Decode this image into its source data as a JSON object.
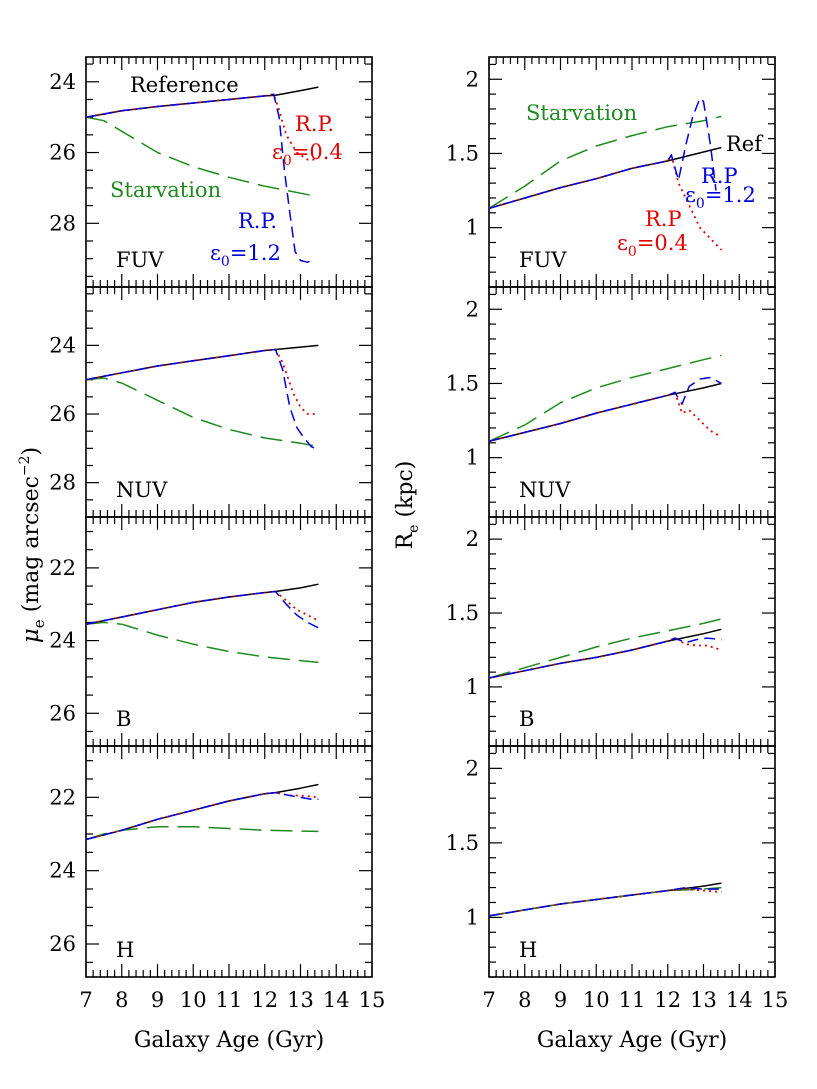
{
  "colors": {
    "ref": "#000000",
    "starvation": "#1f8a1f",
    "rp04": "#e00000",
    "rp12": "#0000dd"
  },
  "left_ylabel": {
    "main": "μ",
    "sub": "e",
    "rest": " (mag arcsec",
    "sup": "−2",
    "end": ")"
  },
  "right_ylabel": {
    "main": "R",
    "sub": "e",
    "rest": " (kpc)"
  },
  "xlabel": "Galaxy Age (Gyr)",
  "x_ticks": [
    "7",
    "8",
    "9",
    "10",
    "11",
    "12",
    "13",
    "14",
    "15"
  ],
  "annotations": {
    "reference": "Reference",
    "ref_short": "Ref",
    "starvation": "Starvation",
    "rp": "R.P.",
    "rp_nodot": "R.P",
    "eps": "ε",
    "eps_sub": "0",
    "eps_val_04": "=0.4",
    "eps_val_12": "=1.2"
  },
  "chart_data": [
    {
      "type": "line",
      "panel": "left-FUV",
      "band": "FUV",
      "xlabel": "",
      "ylabel": "μe (mag arcsec−2)",
      "xlim": [
        7,
        15
      ],
      "ylim": [
        29.8,
        23.3
      ],
      "y_ticks": [
        24,
        26,
        28
      ],
      "y_tick_labels": [
        "24",
        "26",
        "28"
      ],
      "grid": false,
      "series": [
        {
          "name": "Reference",
          "key": "ref",
          "x": [
            7,
            8,
            9,
            10,
            11,
            12,
            12.3,
            13,
            13.5
          ],
          "y": [
            25.0,
            24.82,
            24.7,
            24.6,
            24.5,
            24.4,
            24.38,
            24.25,
            24.15
          ]
        },
        {
          "name": "Starvation",
          "key": "starvation",
          "x": [
            7,
            7.5,
            8,
            9,
            10,
            11,
            12,
            13,
            13.5
          ],
          "y": [
            25.0,
            25.1,
            25.4,
            26.0,
            26.4,
            26.7,
            26.95,
            27.15,
            27.25
          ]
        },
        {
          "name": "R.P. ε0=0.4",
          "key": "rp04",
          "x": [
            7,
            8,
            9,
            10,
            11,
            12,
            12.25,
            12.4,
            12.6,
            12.9,
            13.2,
            13.5
          ],
          "y": [
            25.0,
            24.82,
            24.7,
            24.6,
            24.5,
            24.4,
            24.35,
            24.8,
            25.5,
            26.0,
            26.2,
            26.2
          ]
        },
        {
          "name": "R.P. ε0=1.2",
          "key": "rp12",
          "x": [
            7,
            8,
            9,
            10,
            11,
            12,
            12.25,
            12.4,
            12.55,
            12.7,
            12.85,
            13.0,
            13.2,
            13.4
          ],
          "y": [
            25.0,
            24.82,
            24.7,
            24.6,
            24.5,
            24.4,
            24.35,
            25.0,
            26.5,
            27.7,
            28.8,
            29.05,
            29.1,
            29.0
          ]
        }
      ]
    },
    {
      "type": "line",
      "panel": "left-NUV",
      "band": "NUV",
      "xlabel": "",
      "ylabel": "μe (mag arcsec−2)",
      "xlim": [
        7,
        15
      ],
      "ylim": [
        29.0,
        22.3
      ],
      "y_ticks": [
        24,
        26,
        28
      ],
      "y_tick_labels": [
        "24",
        "26",
        "28"
      ],
      "grid": false,
      "series": [
        {
          "name": "Reference",
          "key": "ref",
          "x": [
            7,
            8,
            9,
            10,
            11,
            12,
            12.3,
            13,
            13.5
          ],
          "y": [
            25.0,
            24.8,
            24.6,
            24.45,
            24.3,
            24.15,
            24.12,
            24.05,
            24.0
          ]
        },
        {
          "name": "Starvation",
          "key": "starvation",
          "x": [
            7,
            7.5,
            8,
            9,
            10,
            11,
            12,
            13,
            13.5
          ],
          "y": [
            25.0,
            24.95,
            25.1,
            25.6,
            26.1,
            26.45,
            26.7,
            26.85,
            26.95
          ]
        },
        {
          "name": "R.P. ε0=0.4",
          "key": "rp04",
          "x": [
            7,
            8,
            9,
            10,
            11,
            12,
            12.3,
            12.5,
            12.8,
            13.0,
            13.2,
            13.5
          ],
          "y": [
            25.0,
            24.8,
            24.6,
            24.45,
            24.3,
            24.15,
            24.12,
            24.5,
            25.4,
            25.8,
            26.0,
            26.0
          ]
        },
        {
          "name": "R.P. ε0=1.2",
          "key": "rp12",
          "x": [
            7,
            8,
            9,
            10,
            11,
            12,
            12.3,
            12.5,
            12.7,
            12.9,
            13.1,
            13.3,
            13.5
          ],
          "y": [
            25.0,
            24.8,
            24.6,
            24.45,
            24.3,
            24.15,
            24.12,
            24.7,
            25.8,
            26.4,
            26.7,
            26.95,
            27.05
          ]
        }
      ]
    },
    {
      "type": "line",
      "panel": "left-B",
      "band": "B",
      "xlabel": "",
      "ylabel": "μe (mag arcsec−2)",
      "xlim": [
        7,
        15
      ],
      "ylim": [
        26.9,
        20.6
      ],
      "y_ticks": [
        22,
        24,
        26
      ],
      "y_tick_labels": [
        "22",
        "24",
        "26"
      ],
      "grid": false,
      "series": [
        {
          "name": "Reference",
          "key": "ref",
          "x": [
            7,
            8,
            9,
            10,
            11,
            12,
            12.3,
            13,
            13.5
          ],
          "y": [
            23.55,
            23.35,
            23.15,
            22.95,
            22.8,
            22.68,
            22.65,
            22.55,
            22.45
          ]
        },
        {
          "name": "Starvation",
          "key": "starvation",
          "x": [
            7,
            7.5,
            8,
            9,
            10,
            11,
            12,
            13,
            13.5
          ],
          "y": [
            23.55,
            23.5,
            23.55,
            23.85,
            24.1,
            24.3,
            24.45,
            24.55,
            24.6
          ]
        },
        {
          "name": "R.P. ε0=0.4",
          "key": "rp04",
          "x": [
            7,
            8,
            9,
            10,
            11,
            12,
            12.3,
            12.6,
            12.9,
            13.2,
            13.5
          ],
          "y": [
            23.55,
            23.35,
            23.15,
            22.95,
            22.8,
            22.68,
            22.65,
            22.9,
            23.15,
            23.3,
            23.45
          ]
        },
        {
          "name": "R.P. ε0=1.2",
          "key": "rp12",
          "x": [
            7,
            8,
            9,
            10,
            11,
            12,
            12.3,
            12.6,
            12.9,
            13.2,
            13.5
          ],
          "y": [
            23.55,
            23.35,
            23.15,
            22.95,
            22.8,
            22.68,
            22.65,
            23.0,
            23.3,
            23.5,
            23.65
          ]
        }
      ]
    },
    {
      "type": "line",
      "panel": "left-H",
      "band": "H",
      "xlabel": "Galaxy Age (Gyr)",
      "ylabel": "μe (mag arcsec−2)",
      "xlim": [
        7,
        15
      ],
      "ylim": [
        26.9,
        20.6
      ],
      "y_ticks": [
        22,
        24,
        26
      ],
      "y_tick_labels": [
        "22",
        "24",
        "26"
      ],
      "grid": false,
      "series": [
        {
          "name": "Reference",
          "key": "ref",
          "x": [
            7,
            8,
            9,
            10,
            11,
            12,
            12.3,
            13,
            13.5
          ],
          "y": [
            23.15,
            22.9,
            22.6,
            22.35,
            22.1,
            21.9,
            21.87,
            21.75,
            21.65
          ]
        },
        {
          "name": "Starvation",
          "key": "starvation",
          "x": [
            7,
            7.5,
            8,
            9,
            10,
            11,
            12,
            13,
            13.5
          ],
          "y": [
            23.15,
            23.0,
            22.9,
            22.8,
            22.8,
            22.85,
            22.9,
            22.92,
            22.93
          ]
        },
        {
          "name": "R.P. ε0=0.4",
          "key": "rp04",
          "x": [
            7,
            8,
            9,
            10,
            11,
            12,
            12.3,
            12.7,
            13.0,
            13.3,
            13.5
          ],
          "y": [
            23.15,
            22.9,
            22.6,
            22.35,
            22.1,
            21.9,
            21.87,
            21.95,
            21.95,
            21.98,
            22.0
          ]
        },
        {
          "name": "R.P. ε0=1.2",
          "key": "rp12",
          "x": [
            7,
            8,
            9,
            10,
            11,
            12,
            12.3,
            12.7,
            13.0,
            13.3,
            13.5
          ],
          "y": [
            23.15,
            22.9,
            22.6,
            22.35,
            22.1,
            21.9,
            21.87,
            21.95,
            22.0,
            22.05,
            22.05
          ]
        }
      ]
    },
    {
      "type": "line",
      "panel": "right-FUV",
      "band": "FUV",
      "xlabel": "",
      "ylabel": "Re (kpc)",
      "xlim": [
        7,
        15
      ],
      "ylim": [
        0.6,
        2.15
      ],
      "y_ticks": [
        1,
        1.5,
        2
      ],
      "y_tick_labels": [
        "1",
        "1.5",
        "2"
      ],
      "grid": false,
      "series": [
        {
          "name": "Reference",
          "key": "ref",
          "x": [
            7,
            8,
            9,
            10,
            11,
            12,
            13,
            13.5
          ],
          "y": [
            1.13,
            1.2,
            1.27,
            1.33,
            1.4,
            1.45,
            1.51,
            1.54
          ]
        },
        {
          "name": "Starvation",
          "key": "starvation",
          "x": [
            7,
            8,
            9,
            10,
            11,
            12,
            13,
            13.5
          ],
          "y": [
            1.13,
            1.28,
            1.45,
            1.55,
            1.62,
            1.68,
            1.72,
            1.75
          ]
        },
        {
          "name": "R.P. ε0=0.4",
          "key": "rp04",
          "x": [
            7,
            8,
            9,
            10,
            11,
            12,
            12.1,
            12.3,
            12.6,
            12.9,
            13.1,
            13.3,
            13.5
          ],
          "y": [
            1.13,
            1.2,
            1.27,
            1.33,
            1.4,
            1.45,
            1.49,
            1.3,
            1.15,
            1.0,
            0.95,
            0.9,
            0.85
          ]
        },
        {
          "name": "R.P. ε0=1.2",
          "key": "rp12",
          "x": [
            7,
            8,
            9,
            10,
            11,
            12,
            12.1,
            12.3,
            12.5,
            12.7,
            12.9,
            13.0,
            13.2,
            13.35
          ],
          "y": [
            1.13,
            1.2,
            1.27,
            1.33,
            1.4,
            1.45,
            1.49,
            1.32,
            1.55,
            1.75,
            1.87,
            1.85,
            1.55,
            1.25
          ]
        }
      ]
    },
    {
      "type": "line",
      "panel": "right-NUV",
      "band": "NUV",
      "xlabel": "",
      "ylabel": "Re (kpc)",
      "xlim": [
        7,
        15
      ],
      "ylim": [
        0.6,
        2.15
      ],
      "y_ticks": [
        1,
        1.5,
        2
      ],
      "y_tick_labels": [
        "1",
        "1.5",
        "2"
      ],
      "grid": false,
      "series": [
        {
          "name": "Reference",
          "key": "ref",
          "x": [
            7,
            8,
            9,
            10,
            11,
            12,
            13,
            13.5
          ],
          "y": [
            1.11,
            1.17,
            1.23,
            1.3,
            1.36,
            1.42,
            1.47,
            1.5
          ]
        },
        {
          "name": "Starvation",
          "key": "starvation",
          "x": [
            7,
            8,
            9,
            10,
            11,
            12,
            13,
            13.5
          ],
          "y": [
            1.11,
            1.22,
            1.37,
            1.47,
            1.54,
            1.6,
            1.66,
            1.69
          ]
        },
        {
          "name": "R.P. ε0=0.4",
          "key": "rp04",
          "x": [
            7,
            8,
            9,
            10,
            11,
            12,
            12.2,
            12.4,
            12.6,
            12.9,
            13.2,
            13.5
          ],
          "y": [
            1.11,
            1.17,
            1.23,
            1.3,
            1.36,
            1.42,
            1.44,
            1.3,
            1.32,
            1.25,
            1.18,
            1.14
          ]
        },
        {
          "name": "R.P. ε0=1.2",
          "key": "rp12",
          "x": [
            7,
            8,
            9,
            10,
            11,
            12,
            12.2,
            12.4,
            12.6,
            12.9,
            13.2,
            13.5
          ],
          "y": [
            1.11,
            1.17,
            1.23,
            1.3,
            1.36,
            1.42,
            1.44,
            1.36,
            1.48,
            1.53,
            1.54,
            1.5
          ]
        }
      ]
    },
    {
      "type": "line",
      "panel": "right-B",
      "band": "B",
      "xlabel": "",
      "ylabel": "Re (kpc)",
      "xlim": [
        7,
        15
      ],
      "ylim": [
        0.6,
        2.15
      ],
      "y_ticks": [
        1,
        1.5,
        2
      ],
      "y_tick_labels": [
        "1",
        "1.5",
        "2"
      ],
      "grid": false,
      "series": [
        {
          "name": "Reference",
          "key": "ref",
          "x": [
            7,
            8,
            9,
            10,
            11,
            12,
            13,
            13.5
          ],
          "y": [
            1.06,
            1.11,
            1.16,
            1.2,
            1.25,
            1.31,
            1.36,
            1.39
          ]
        },
        {
          "name": "Starvation",
          "key": "starvation",
          "x": [
            7,
            8,
            9,
            10,
            11,
            12,
            13,
            13.5
          ],
          "y": [
            1.06,
            1.13,
            1.2,
            1.27,
            1.33,
            1.38,
            1.43,
            1.46
          ]
        },
        {
          "name": "R.P. ε0=0.4",
          "key": "rp04",
          "x": [
            7,
            8,
            9,
            10,
            11,
            12,
            12.2,
            12.5,
            12.8,
            13.1,
            13.5
          ],
          "y": [
            1.06,
            1.11,
            1.16,
            1.2,
            1.25,
            1.31,
            1.33,
            1.29,
            1.28,
            1.28,
            1.25
          ]
        },
        {
          "name": "R.P. ε0=1.2",
          "key": "rp12",
          "x": [
            7,
            8,
            9,
            10,
            11,
            12,
            12.2,
            12.5,
            12.8,
            13.1,
            13.5
          ],
          "y": [
            1.06,
            1.11,
            1.16,
            1.2,
            1.25,
            1.31,
            1.33,
            1.3,
            1.32,
            1.33,
            1.32
          ]
        }
      ]
    },
    {
      "type": "line",
      "panel": "right-H",
      "band": "H",
      "xlabel": "Galaxy Age (Gyr)",
      "ylabel": "Re (kpc)",
      "xlim": [
        7,
        15
      ],
      "ylim": [
        0.6,
        2.15
      ],
      "y_ticks": [
        1,
        1.5,
        2
      ],
      "y_tick_labels": [
        "1",
        "1.5",
        "2"
      ],
      "grid": false,
      "series": [
        {
          "name": "Reference",
          "key": "ref",
          "x": [
            7,
            8,
            9,
            10,
            11,
            12,
            13,
            13.5
          ],
          "y": [
            1.01,
            1.05,
            1.09,
            1.12,
            1.15,
            1.18,
            1.21,
            1.23
          ]
        },
        {
          "name": "Starvation",
          "key": "starvation",
          "x": [
            7,
            8,
            9,
            10,
            11,
            12,
            13,
            13.5
          ],
          "y": [
            1.01,
            1.05,
            1.09,
            1.12,
            1.15,
            1.18,
            1.19,
            1.2
          ]
        },
        {
          "name": "R.P. ε0=0.4",
          "key": "rp04",
          "x": [
            7,
            8,
            9,
            10,
            11,
            12,
            12.5,
            13.0,
            13.5
          ],
          "y": [
            1.01,
            1.05,
            1.09,
            1.12,
            1.15,
            1.18,
            1.19,
            1.18,
            1.17
          ]
        },
        {
          "name": "R.P. ε0=1.2",
          "key": "rp12",
          "x": [
            7,
            8,
            9,
            10,
            11,
            12,
            12.5,
            13.0,
            13.5
          ],
          "y": [
            1.01,
            1.05,
            1.09,
            1.12,
            1.15,
            1.18,
            1.2,
            1.19,
            1.19
          ]
        }
      ]
    }
  ]
}
